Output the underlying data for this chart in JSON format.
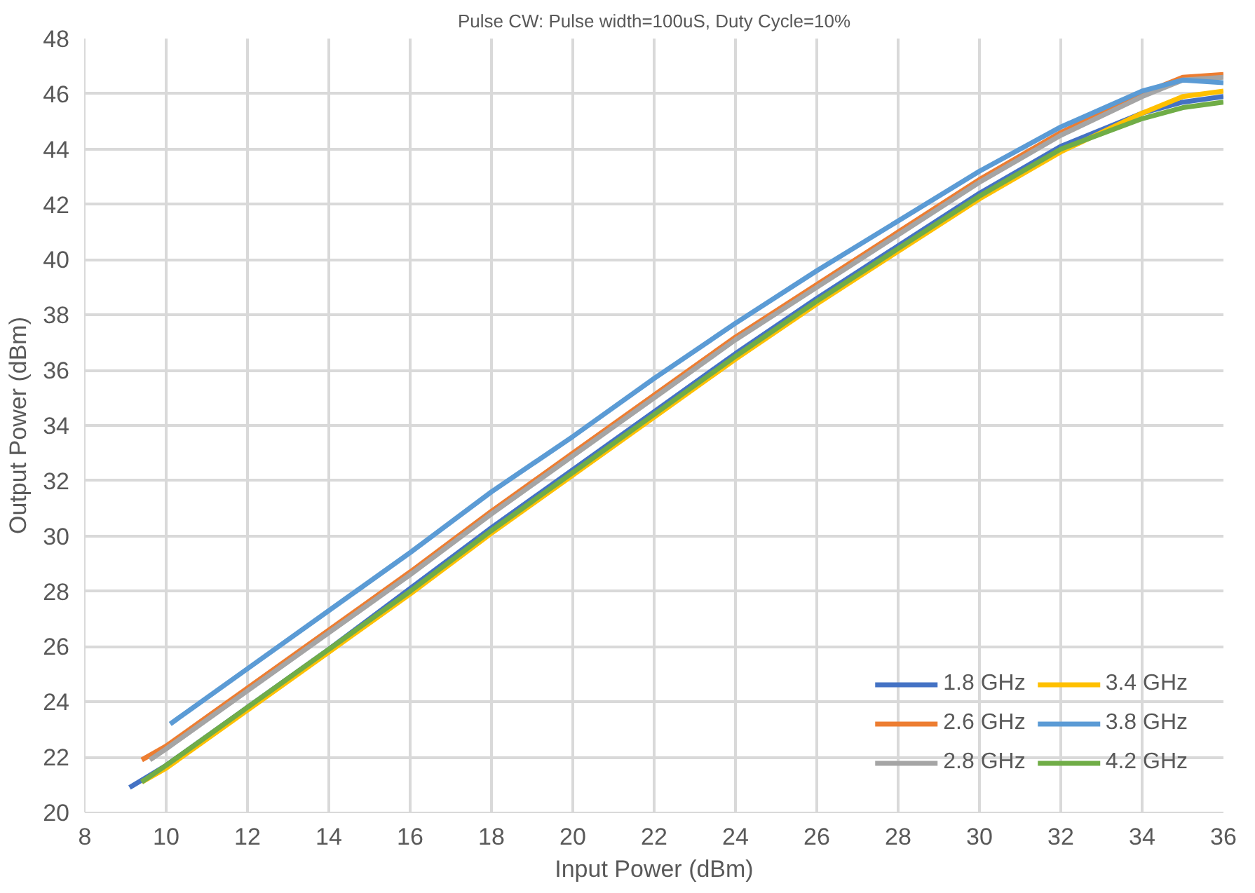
{
  "chart_data": {
    "type": "line",
    "title": "Pulse CW: Pulse width=100uS, Duty Cycle=10%",
    "xlabel": "Input Power (dBm)",
    "ylabel": "Output Power (dBm)",
    "xlim": [
      8,
      36
    ],
    "xticks": [
      8,
      10,
      12,
      14,
      16,
      18,
      20,
      22,
      24,
      26,
      28,
      30,
      32,
      34,
      36
    ],
    "ylim": [
      20,
      48
    ],
    "yticks": [
      20,
      22,
      24,
      26,
      28,
      30,
      32,
      34,
      36,
      38,
      40,
      42,
      44,
      46,
      48
    ],
    "grid": true,
    "legend": "bottom right",
    "marker": "none",
    "line_style": "solid",
    "series": [
      {
        "name": "1.8 GHz",
        "color": "#4472c4",
        "x": [
          9.1,
          10,
          12,
          14,
          16,
          18,
          20,
          22,
          24,
          26,
          28,
          30,
          32,
          34,
          35,
          36
        ],
        "values": [
          20.9,
          21.7,
          23.8,
          25.9,
          28.1,
          30.3,
          32.4,
          34.5,
          36.6,
          38.6,
          40.5,
          42.4,
          44.1,
          45.3,
          45.7,
          45.9
        ]
      },
      {
        "name": "2.6 GHz",
        "color": "#ed7d31",
        "x": [
          9.4,
          10,
          12,
          14,
          16,
          18,
          20,
          22,
          24,
          26,
          28,
          30,
          32,
          34,
          35,
          36
        ],
        "values": [
          21.9,
          22.4,
          24.5,
          26.6,
          28.7,
          30.9,
          33.0,
          35.1,
          37.2,
          39.1,
          41.0,
          42.9,
          44.6,
          46.0,
          46.6,
          46.7
        ]
      },
      {
        "name": "2.8 GHz",
        "color": "#a5a5a5",
        "x": [
          9.6,
          10,
          12,
          14,
          16,
          18,
          20,
          22,
          24,
          26,
          28,
          30,
          32,
          34,
          35,
          36
        ],
        "values": [
          21.9,
          22.3,
          24.4,
          26.5,
          28.6,
          30.8,
          32.9,
          35.0,
          37.1,
          39.0,
          40.9,
          42.8,
          44.5,
          45.9,
          46.5,
          46.6
        ]
      },
      {
        "name": "3.4 GHz",
        "color": "#ffc000",
        "x": [
          9.4,
          10,
          12,
          14,
          16,
          18,
          20,
          22,
          24,
          26,
          28,
          30,
          32,
          34,
          35,
          36
        ],
        "values": [
          21.1,
          21.6,
          23.7,
          25.8,
          27.9,
          30.1,
          32.2,
          34.3,
          36.4,
          38.4,
          40.3,
          42.2,
          43.9,
          45.3,
          45.9,
          46.1
        ]
      },
      {
        "name": "3.8 GHz",
        "color": "#5b9bd5",
        "x": [
          10.1,
          12,
          14,
          16,
          18,
          20,
          22,
          24,
          26,
          28,
          30,
          32,
          34,
          35,
          36
        ],
        "values": [
          23.2,
          25.2,
          27.3,
          29.4,
          31.6,
          33.6,
          35.7,
          37.7,
          39.6,
          41.4,
          43.2,
          44.8,
          46.1,
          46.5,
          46.4
        ]
      },
      {
        "name": "4.2 GHz",
        "color": "#70ad47",
        "x": [
          9.4,
          10,
          12,
          14,
          16,
          18,
          20,
          22,
          24,
          26,
          28,
          30,
          32,
          34,
          35,
          36
        ],
        "values": [
          21.1,
          21.7,
          23.8,
          25.9,
          28.0,
          30.2,
          32.3,
          34.4,
          36.5,
          38.5,
          40.4,
          42.3,
          44.0,
          45.1,
          45.5,
          45.7
        ]
      }
    ]
  }
}
